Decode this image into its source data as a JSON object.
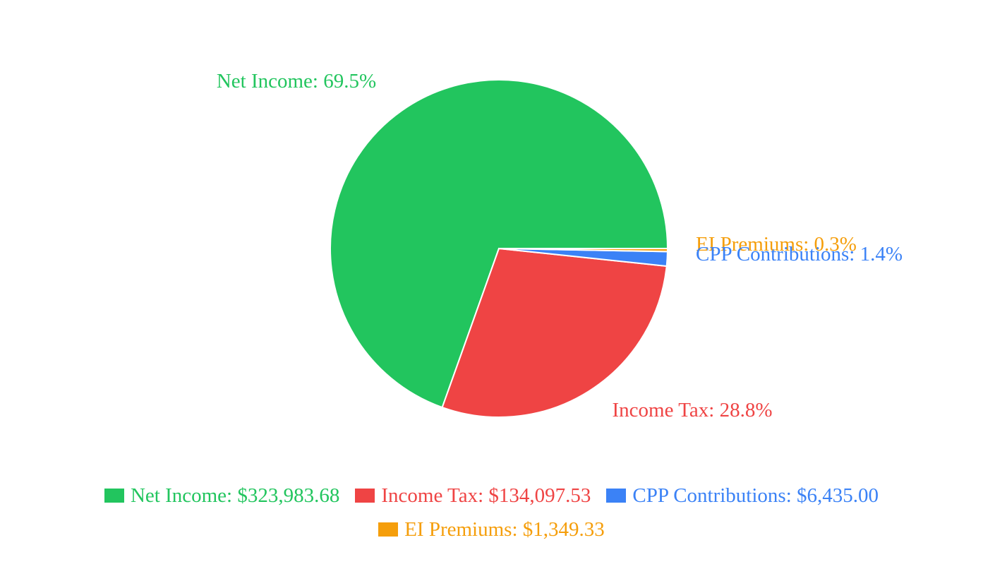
{
  "chart_data": {
    "type": "pie",
    "title": "",
    "categories": [
      "Net Income",
      "Income Tax",
      "CPP Contributions",
      "EI Premiums"
    ],
    "values": [
      323983.68,
      134097.53,
      6435.0,
      1349.33
    ],
    "slice_labels": [
      "Net Income: 69.5%",
      "Income Tax: 28.8%",
      "CPP Contributions: 1.4%",
      "EI Premiums: 0.3%"
    ],
    "legend_labels": [
      "Net Income: $323,983.68",
      "Income Tax: $134,097.53",
      "CPP Contributions: $6,435.00",
      "EI Premiums: $1,349.33"
    ],
    "colors": [
      "#22c55e",
      "#ef4444",
      "#3b82f6",
      "#f59e0b"
    ],
    "legend_position": "bottom"
  }
}
